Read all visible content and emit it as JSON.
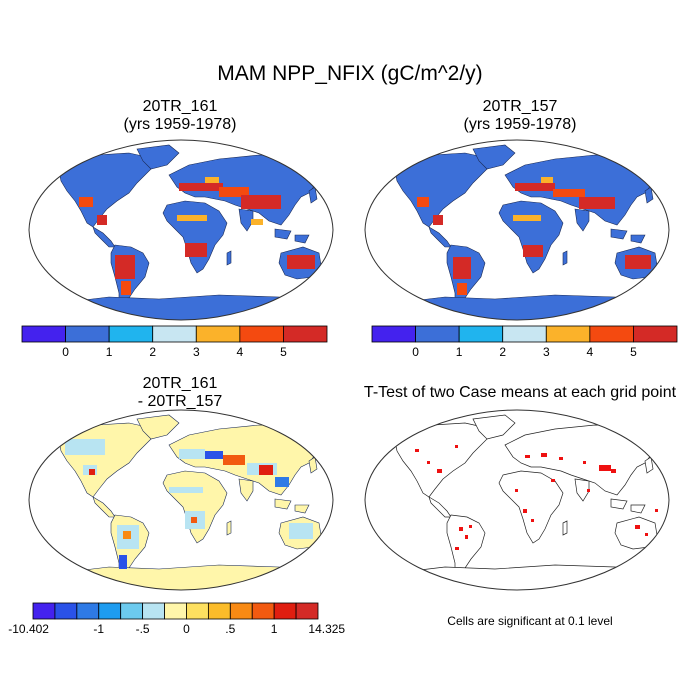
{
  "main_title": "MAM NPP_NFIX (gC/m^2/y)",
  "panels": [
    {
      "title_line1": "20TR_161",
      "title_line2": "(yrs 1959-1978)"
    },
    {
      "title_line1": "20TR_157",
      "title_line2": "(yrs 1959-1978)"
    },
    {
      "title_line1": "20TR_161",
      "title_line2": "- 20TR_157"
    },
    {
      "title_line1": "T-Test of two Case means at each grid point",
      "title_line2": ""
    }
  ],
  "colorbar_top": {
    "colors": [
      "#4422ee",
      "#3c6fd8",
      "#20b4ee",
      "#c8e6f2",
      "#fbb22a",
      "#f44a10",
      "#d42a26"
    ],
    "labels": [
      "0",
      "1",
      "2",
      "3",
      "4",
      "5"
    ]
  },
  "colorbar_diff": {
    "colors": [
      "#4422ee",
      "#2a52e8",
      "#2e7ae6",
      "#1e9cf0",
      "#6ccaee",
      "#b8e4f2",
      "#fff6aa",
      "#fde060",
      "#fbbc2a",
      "#f88a14",
      "#f25a10",
      "#e01e10",
      "#d42a26"
    ],
    "labels": [
      "-10.402",
      "-1",
      "-.5",
      "0",
      ".5",
      "1",
      "14.325"
    ]
  },
  "ttest_note": "Cells are significant at 0.1 level",
  "colors": {
    "land_fill": "#3c6fd8",
    "ocean_fill": "#ffffff",
    "diff_land_fill": "#fff6aa",
    "significant_cell": "#ee1111"
  }
}
